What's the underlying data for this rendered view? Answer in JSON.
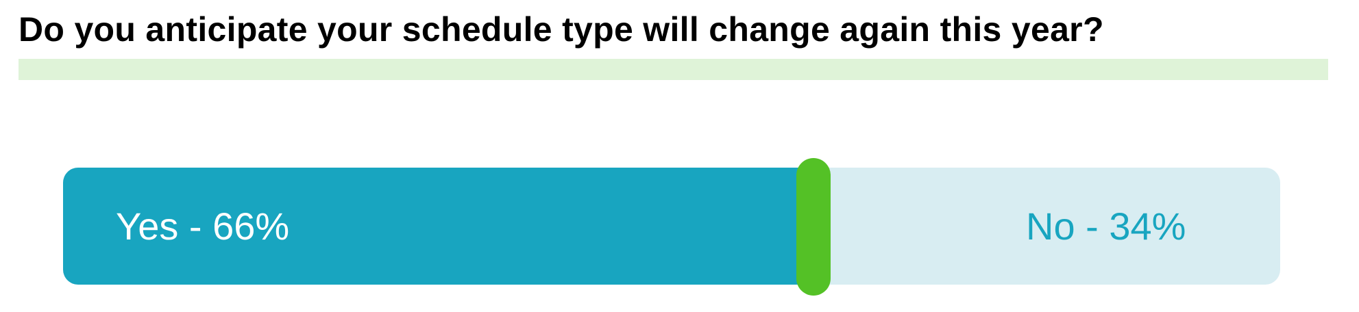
{
  "chart_data": {
    "type": "bar",
    "title": "Do you anticipate your schedule type will change again this year?",
    "categories": [
      "Yes",
      "No"
    ],
    "values": [
      66,
      34
    ],
    "labels": [
      "Yes - 66%",
      "No - 34%"
    ],
    "unit": "%",
    "colors": {
      "yes": "#18a5c0",
      "no": "#d8edf2",
      "divider": "#54c126",
      "band": "#dff3d8"
    }
  }
}
